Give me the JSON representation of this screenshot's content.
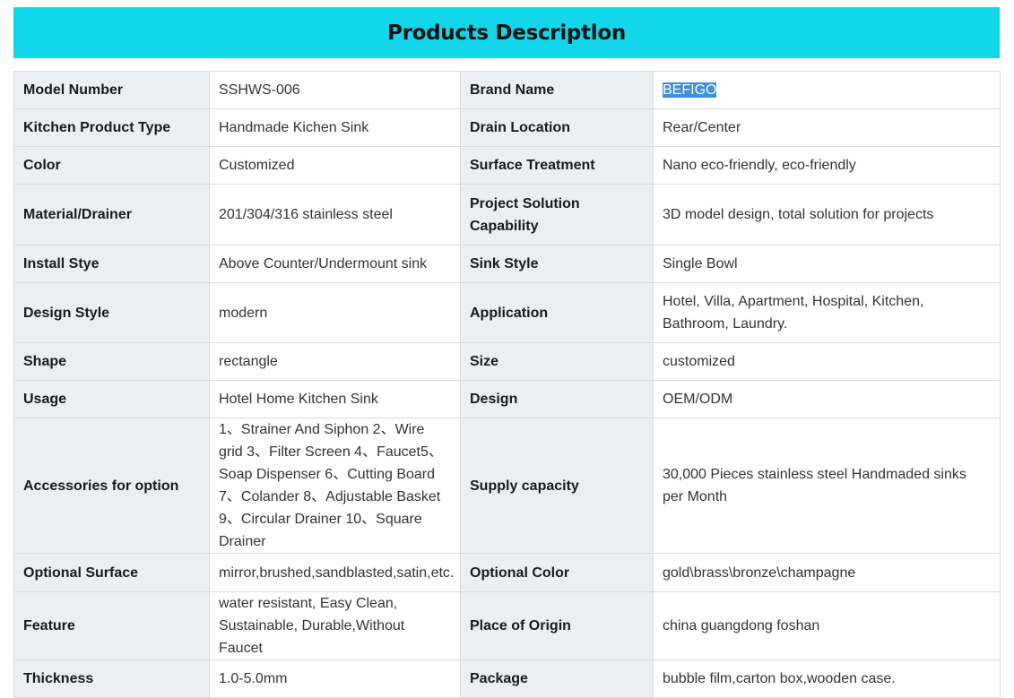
{
  "header": {
    "title": "Products Descriptlon"
  },
  "rows": [
    {
      "k1": "Model Number",
      "v1": "SSHWS-006",
      "k2": "Brand Name",
      "v2": "BEFIGO"
    },
    {
      "k1": "Kitchen Product Type",
      "v1": "Handmade Kichen Sink",
      "k2": "Drain Location",
      "v2": "Rear/Center"
    },
    {
      "k1": "Color",
      "v1": "Customized",
      "k2": "Surface Treatment",
      "v2": "Nano eco-friendly, eco-friendly"
    },
    {
      "k1": "Material/Drainer",
      "v1": "201/304/316 stainless steel",
      "k2": "Project Solution Capability",
      "v2": "3D model design, total solution for projects"
    },
    {
      "k1": "Install Stye",
      "v1": "Above Counter/Undermount sink",
      "k2": "Sink Style",
      "v2": "Single Bowl"
    },
    {
      "k1": "Design Style",
      "v1": "modern",
      "k2": "Application",
      "v2": "Hotel, Villa, Apartment, Hospital, Kitchen, Bathroom, Laundry."
    },
    {
      "k1": "Shape",
      "v1": "rectangle",
      "k2": "Size",
      "v2": "customized"
    },
    {
      "k1": "Usage",
      "v1": "Hotel Home Kitchen Sink",
      "k2": "Design",
      "v2": "OEM/ODM"
    },
    {
      "k1": "Accessories for option",
      "v1": "1、Strainer And Siphon 2、Wire grid 3、Filter Screen 4、Faucet5、Soap Dispenser 6、Cutting Board 7、Colander 8、Adjustable Basket 9、Circular Drainer 10、Square Drainer",
      "k2": "Supply capacity",
      "v2": "30,000 Pieces stainless steel Handmaded sinks per Month"
    },
    {
      "k1": "Optional Surface",
      "v1": "mirror,brushed,sandblasted,satin,etc.",
      "k2": "Optional Color",
      "v2": "gold\\brass\\bronze\\champagne"
    },
    {
      "k1": "Feature",
      "v1": "water resistant, Easy Clean, Sustainable, Durable,Without Faucet",
      "k2": "Place of Origin",
      "v2": "china guangdong foshan"
    },
    {
      "k1": "Thickness",
      "v1": "1.0-5.0mm",
      "k2": "Package",
      "v2": "bubble film,carton box,wooden case."
    }
  ]
}
